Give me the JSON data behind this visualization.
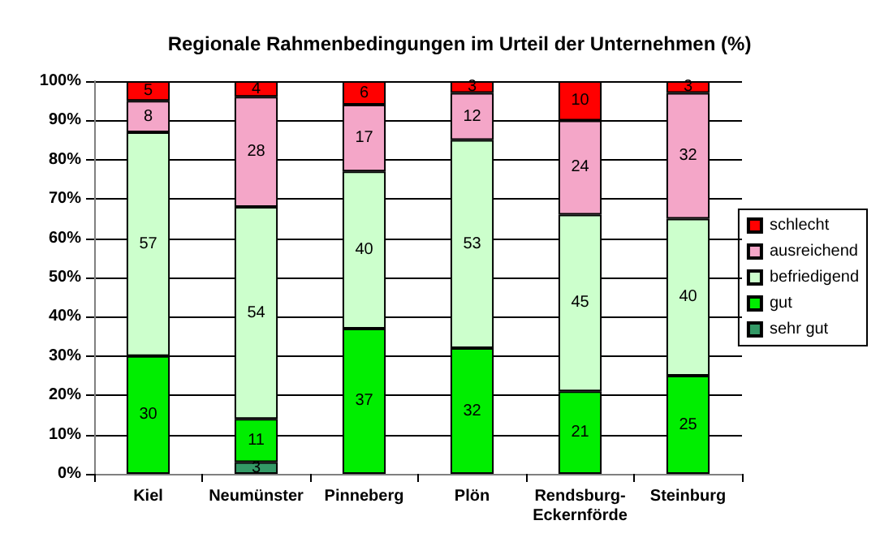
{
  "chart_data": {
    "type": "bar",
    "title": "Regionale Rahmenbedingungen im Urteil der Unternehmen (%)",
    "categories": [
      "Kiel",
      "Neumünster",
      "Pinneberg",
      "Plön",
      "Rendsburg-\nEckernförde",
      "Steinburg"
    ],
    "stacked": true,
    "series": [
      {
        "name": "sehr gut",
        "color": "#339966",
        "values": [
          null,
          3,
          null,
          null,
          null,
          null
        ]
      },
      {
        "name": "gut",
        "color": "#00ee00",
        "values": [
          30,
          11,
          37,
          32,
          21,
          25
        ]
      },
      {
        "name": "befriedigend",
        "color": "#ccffcc",
        "values": [
          57,
          54,
          40,
          53,
          45,
          40
        ]
      },
      {
        "name": "ausreichend",
        "color": "#f4a6c8",
        "values": [
          8,
          28,
          17,
          12,
          24,
          32
        ]
      },
      {
        "name": "schlecht",
        "color": "#ff0000",
        "values": [
          5,
          4,
          6,
          3,
          10,
          3
        ]
      }
    ],
    "ylim": [
      0,
      100
    ],
    "yticks": [
      {
        "value": 0,
        "label": "0%"
      },
      {
        "value": 10,
        "label": "10%"
      },
      {
        "value": 20,
        "label": "20%"
      },
      {
        "value": 30,
        "label": "30%"
      },
      {
        "value": 40,
        "label": "40%"
      },
      {
        "value": 50,
        "label": "50%"
      },
      {
        "value": 60,
        "label": "60%"
      },
      {
        "value": 70,
        "label": "70%"
      },
      {
        "value": 80,
        "label": "80%"
      },
      {
        "value": 90,
        "label": "90%"
      },
      {
        "value": 100,
        "label": "100%"
      }
    ],
    "data_labels": true,
    "grid": "y",
    "legend": "right"
  }
}
